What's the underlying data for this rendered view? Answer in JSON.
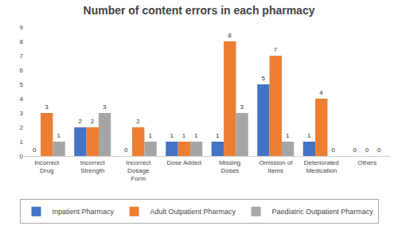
{
  "chart_data": {
    "type": "bar",
    "title": "Number of content errors in each pharmacy",
    "categories": [
      "Incorrect\nDrug",
      "Incorrect\nStrength",
      "Incorrect\nDosage\nForm",
      "Dose Added",
      "Missing\nDoses",
      "Omission of\nItems",
      "Deteriorated\nMedication",
      "Others"
    ],
    "series": [
      {
        "name": "Inpatient Pharmacy",
        "color": "#4472C4",
        "values": [
          0,
          2,
          0,
          1,
          1,
          5,
          1,
          0
        ]
      },
      {
        "name": "Adult Outpatient Pharmacy",
        "color": "#ED7D31",
        "values": [
          3,
          2,
          2,
          1,
          8,
          7,
          4,
          0
        ]
      },
      {
        "name": "Paediatric Outpatient Pharmacy",
        "color": "#A5A5A5",
        "values": [
          1,
          3,
          1,
          1,
          3,
          1,
          0,
          0
        ]
      }
    ],
    "ylim": [
      0,
      9
    ],
    "yticks": [
      0,
      1,
      2,
      3,
      4,
      5,
      6,
      7,
      8,
      9
    ],
    "grid": false,
    "data_labels": true,
    "legend": "bottom"
  }
}
